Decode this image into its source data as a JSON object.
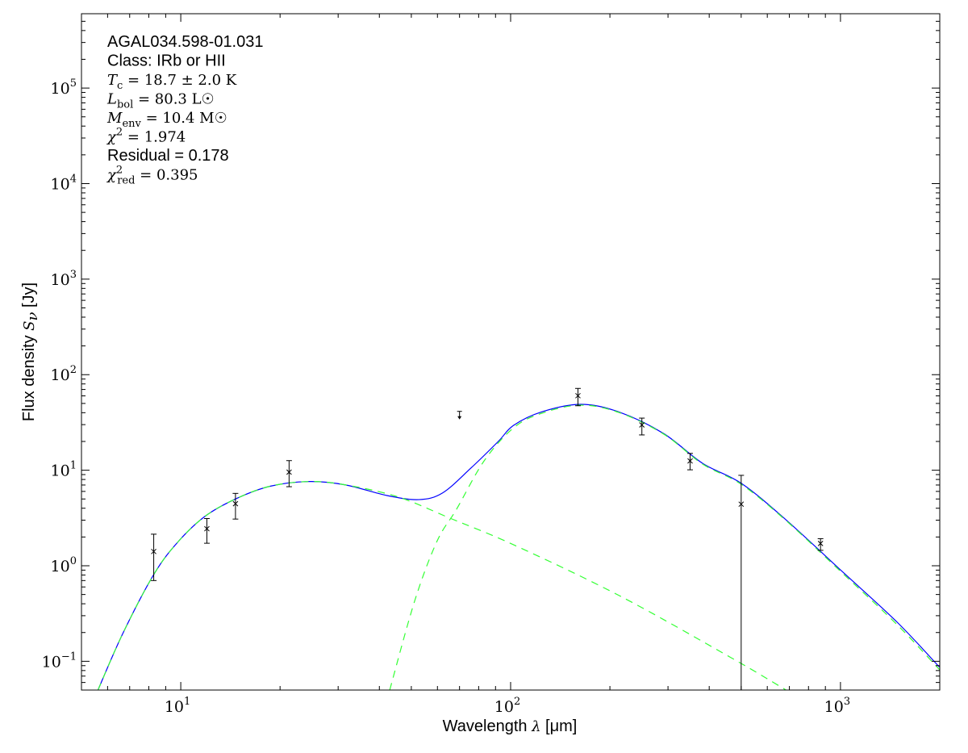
{
  "chart_data": {
    "type": "line",
    "title": "",
    "xlabel": {
      "text": "Wavelength ",
      "symbol": "λ",
      "unit": " [μm]"
    },
    "ylabel": {
      "text": "Flux density ",
      "symbol": "S",
      "sub": "ν",
      "unit": " [Jy]"
    },
    "xscale": "log",
    "yscale": "log",
    "xlim": [
      5,
      2000
    ],
    "ylim": [
      0.05,
      600000
    ],
    "grid": false,
    "x_ticks": [
      {
        "base": "10",
        "exp": "1",
        "value": 10
      },
      {
        "base": "10",
        "exp": "2",
        "value": 100
      },
      {
        "base": "10",
        "exp": "3",
        "value": 1000
      }
    ],
    "y_ticks": [
      {
        "base": "10",
        "exp": "−1",
        "value": 0.1
      },
      {
        "base": "10",
        "exp": "0",
        "value": 1
      },
      {
        "base": "10",
        "exp": "1",
        "value": 10
      },
      {
        "base": "10",
        "exp": "2",
        "value": 100
      },
      {
        "base": "10",
        "exp": "3",
        "value": 1000
      },
      {
        "base": "10",
        "exp": "4",
        "value": 10000
      },
      {
        "base": "10",
        "exp": "5",
        "value": 100000
      }
    ],
    "annotations": [
      {
        "type": "sans",
        "text": "AGAL034.598-01.031"
      },
      {
        "type": "sans",
        "text": "Class: IRb or HII"
      },
      {
        "type": "math",
        "sym": "T",
        "sub": "c",
        "sup": "",
        "rest": " = 18.7 ± 2.0 K"
      },
      {
        "type": "math",
        "sym": "L",
        "sub": "bol",
        "sup": "",
        "rest": " = 80.3 L☉"
      },
      {
        "type": "math",
        "sym": "M",
        "sub": "env",
        "sup": "",
        "rest": " = 10.4 M☉"
      },
      {
        "type": "math",
        "sym": "χ",
        "sub": "",
        "sup": "2",
        "rest": " = 1.974"
      },
      {
        "type": "sans",
        "text": "Residual = 0.178"
      },
      {
        "type": "math",
        "sym": "χ",
        "sub": "red",
        "sup": "2",
        "rest": " = 0.395"
      }
    ],
    "measurements": [
      {
        "x": 8.28,
        "y": 1.41,
        "err_low": 0.7,
        "err_high": 2.14
      },
      {
        "x": 12,
        "y": 2.44,
        "err_low": 1.72,
        "err_high": 3.12
      },
      {
        "x": 14.65,
        "y": 4.46,
        "err_low": 3.08,
        "err_high": 5.72
      },
      {
        "x": 21.3,
        "y": 9.55,
        "err_low": 6.72,
        "err_high": 12.6
      },
      {
        "x": 160,
        "y": 60.2,
        "err_low": 47.3,
        "err_high": 71.8
      },
      {
        "x": 250,
        "y": 29.8,
        "err_low": 23.4,
        "err_high": 35.1
      },
      {
        "x": 350,
        "y": 12.5,
        "err_low": 10.1,
        "err_high": 15.0
      },
      {
        "x": 500,
        "y": 4.41,
        "err_low": 0,
        "err_high": 8.84
      },
      {
        "x": 870,
        "y": 1.71,
        "err_low": 1.45,
        "err_high": 1.92
      }
    ],
    "upper_limits": [
      {
        "x": 70,
        "y": 41.3
      }
    ],
    "series": [
      {
        "style": "solid",
        "color": "#0000ff",
        "x": [
          5.61,
          6.68,
          8.3,
          9.84,
          11.9,
          14.8,
          18.7,
          24.5,
          31.5,
          42.2,
          52.7,
          62.2,
          75.5,
          91.6,
          102,
          124,
          163,
          213,
          291,
          382,
          501,
          684,
          1009,
          1488,
          1995
        ],
        "y": [
          0.05,
          0.197,
          0.82,
          1.8,
          3.33,
          5.08,
          6.81,
          7.61,
          7.03,
          5.43,
          4.92,
          5.79,
          10.4,
          19.9,
          29.4,
          40.7,
          48.9,
          40.7,
          24.2,
          11.8,
          7.27,
          3.02,
          0.879,
          0.255,
          0.087
        ]
      },
      {
        "style": "dashed",
        "color": "#33ff33",
        "x": [
          5.61,
          6.68,
          8.3,
          9.84,
          11.9,
          14.8,
          18.7,
          24.5,
          31.5,
          45.6,
          65.9,
          102,
          213,
          464,
          684
        ],
        "y": [
          0.05,
          0.197,
          0.82,
          1.8,
          3.33,
          5.08,
          6.81,
          7.61,
          7.03,
          5.25,
          3.12,
          1.66,
          0.489,
          0.11,
          0.05
        ]
      },
      {
        "style": "dashed",
        "color": "#33ff33",
        "x": [
          43.0,
          51.2,
          59.8,
          68.6,
          83.2,
          102,
          124,
          163,
          213,
          291,
          382,
          501,
          684,
          1009,
          1488,
          1995
        ],
        "y": [
          0.05,
          0.43,
          1.8,
          3.92,
          12.6,
          27.7,
          39.4,
          48.0,
          40.2,
          23.9,
          11.6,
          7.1,
          2.97,
          0.85,
          0.24,
          0.082
        ]
      }
    ]
  }
}
